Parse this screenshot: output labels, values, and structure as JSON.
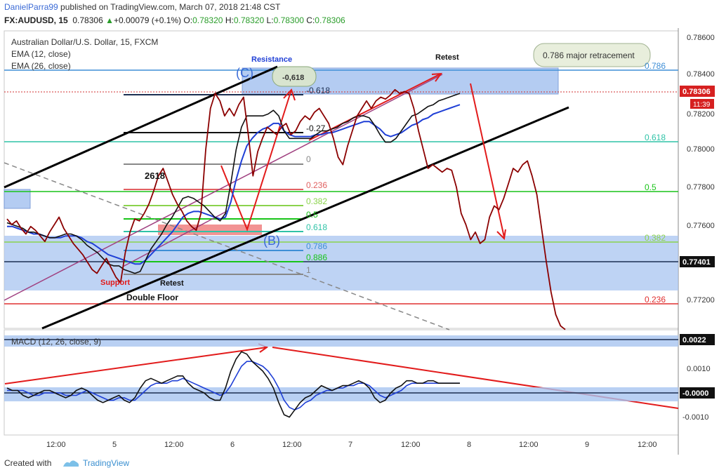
{
  "header": {
    "author": "DanielParra99",
    "published_text": " published on TradingView.com, March 07, 2018 21:48 CST",
    "symbol": "FX:AUDUSD, 15",
    "price": "0.78306",
    "change_arrow": "▲",
    "change": "+0.00079 (+0.1%)",
    "o_label": "O:",
    "o_value": "0.78320",
    "h_label": "H:",
    "h_value": "0.78320",
    "l_label": "L:",
    "l_value": "0.78300",
    "c_label": "C:",
    "c_value": "0.78306"
  },
  "legend": {
    "title": "Australian Dollar/U.S. Dollar, 15, FXCM",
    "ema12": "EMA (12, close)",
    "ema26": "EMA (26, close)",
    "macd": "MACD (12, 26, close, 9)"
  },
  "annotations": {
    "resistance": "Resistance",
    "retest_top": "Retest",
    "callout": "0.786 major retracement",
    "c_wave": "(C)",
    "b_wave": "(B)",
    "neg618_bubble": "-0,618",
    "neg618_label": "-0.618",
    "neg27": "-0.27",
    "zero": "0",
    "v2618": "2618",
    "fib_0236": "0.236",
    "fib_0382": "0.382",
    "fib_05": "0.5",
    "fib_0618": "0.618",
    "fib_0786": "0.786",
    "fib_0886": "0.886",
    "fib_1": "1",
    "support": "Support",
    "retest_bottom": "Retest",
    "double_floor": "Double Floor",
    "right_0786": "0.786",
    "right_0618": "0.618",
    "right_05": "0.5",
    "right_0382": "0.382",
    "right_0236": "0.236"
  },
  "chart_data": {
    "type": "line",
    "symbol": "AUDUSD",
    "timeframe": "15",
    "y_axis_labels": [
      "0.78600",
      "0.78400",
      "0.78200",
      "0.78000",
      "0.77800",
      "0.77600",
      "0.77200"
    ],
    "last_price_label": "0.78306",
    "countdown_label": "11:39",
    "level_label": "0.77401",
    "x_axis_labels": [
      "12:00",
      "5",
      "12:00",
      "6",
      "12:00",
      "7",
      "12:00",
      "8",
      "12:00",
      "9",
      "12:00"
    ],
    "series": [
      {
        "values": [
          0.7763,
          0.776,
          0.7762,
          0.7758,
          0.7755,
          0.7759,
          0.7757,
          0.7754,
          0.7751,
          0.7756,
          0.776,
          0.7764,
          0.7758,
          0.7754,
          0.775,
          0.7747,
          0.7744,
          0.774,
          0.7736,
          0.7734,
          0.7738,
          0.7742,
          0.7737,
          0.7732,
          0.7729,
          0.7745,
          0.7756,
          0.7763,
          0.7762,
          0.7766,
          0.7771,
          0.7778,
          0.7786,
          0.779,
          0.7783,
          0.7776,
          0.7771,
          0.7767,
          0.7762,
          0.7759,
          0.7757,
          0.7766,
          0.78,
          0.7822,
          0.783,
          0.7826,
          0.7818,
          0.7822,
          0.7818,
          0.7824,
          0.7828,
          0.7808,
          0.7786,
          0.7799,
          0.7806,
          0.7812,
          0.781,
          0.7808,
          0.7812,
          0.7814,
          0.7808,
          0.781,
          0.7815,
          0.7818,
          0.7816,
          0.782,
          0.7822,
          0.7818,
          0.7814,
          0.7806,
          0.7796,
          0.7792,
          0.7802,
          0.781,
          0.7818,
          0.7822,
          0.7826,
          0.7822,
          0.7826,
          0.7828,
          0.7827,
          0.7829,
          0.7832,
          0.783,
          0.7831,
          0.783,
          0.7822,
          0.781,
          0.78,
          0.779,
          0.7792,
          0.779,
          0.7788,
          0.779,
          0.7789,
          0.778,
          0.7766,
          0.776,
          0.7752,
          0.7756,
          0.775,
          0.7752,
          0.7764,
          0.777,
          0.7768,
          0.7774,
          0.7782,
          0.779,
          0.7788,
          0.7792,
          0.7794,
          0.7786,
          0.7776,
          0.7758,
          0.774,
          0.7724,
          0.7712,
          0.7706,
          0.7704
        ]
      },
      {
        "name": "EMA (12, close)",
        "values": [
          0.7761,
          0.776,
          0.7759,
          0.7758,
          0.7756,
          0.7756,
          0.7755,
          0.7754,
          0.7753,
          0.7753,
          0.7754,
          0.7755,
          0.7755,
          0.7754,
          0.7752,
          0.7749,
          0.7747,
          0.7745,
          0.7742,
          0.7739,
          0.7738,
          0.7738,
          0.7736,
          0.7735,
          0.7734,
          0.7735,
          0.7741,
          0.7747,
          0.7751,
          0.7755,
          0.776,
          0.7764,
          0.7769,
          0.7774,
          0.7775,
          0.7774,
          0.7772,
          0.777,
          0.7767,
          0.7764,
          0.7762,
          0.7766,
          0.7782,
          0.78,
          0.7812,
          0.7818,
          0.7818,
          0.7818,
          0.7818,
          0.7819,
          0.7821,
          0.7818,
          0.781,
          0.7806,
          0.7806,
          0.7806,
          0.7806,
          0.7806,
          0.7808,
          0.781,
          0.781,
          0.7811,
          0.7812,
          0.7814,
          0.7815,
          0.7817,
          0.7818,
          0.7818,
          0.7817,
          0.7813,
          0.7808,
          0.7804,
          0.7804,
          0.7806,
          0.781,
          0.7814,
          0.7818,
          0.7819,
          0.7821,
          0.7823,
          0.7824,
          0.7826,
          0.7827,
          0.7828,
          0.7829,
          0.783
        ]
      },
      {
        "name": "EMA (26, close)",
        "values": [
          0.7759,
          0.7759,
          0.7758,
          0.7757,
          0.7756,
          0.7755,
          0.7755,
          0.7754,
          0.7753,
          0.7753,
          0.7753,
          0.7754,
          0.7754,
          0.7754,
          0.7753,
          0.7751,
          0.775,
          0.7748,
          0.7746,
          0.7744,
          0.7743,
          0.7742,
          0.7741,
          0.774,
          0.7739,
          0.7739,
          0.7741,
          0.7744,
          0.7747,
          0.775,
          0.7753,
          0.7756,
          0.776,
          0.7764,
          0.7766,
          0.7767,
          0.7767,
          0.7766,
          0.7765,
          0.7764,
          0.7763,
          0.7764,
          0.7772,
          0.7784,
          0.7794,
          0.7802,
          0.7806,
          0.7809,
          0.7811,
          0.7812,
          0.7814,
          0.7814,
          0.781,
          0.7808,
          0.7807,
          0.7807,
          0.7807,
          0.7807,
          0.7808,
          0.7808,
          0.7809,
          0.7809,
          0.781,
          0.7811,
          0.7812,
          0.7813,
          0.7814,
          0.7815,
          0.7815,
          0.7813,
          0.7811,
          0.7808,
          0.7807,
          0.7808,
          0.7809,
          0.7811,
          0.7813,
          0.7814,
          0.7816,
          0.7817,
          0.7819,
          0.782,
          0.7821,
          0.7822,
          0.7823,
          0.7824
        ]
      }
    ],
    "macd": {
      "y_axis_labels": [
        "0.0022",
        "0.0010",
        "-0.0000",
        "-0.0010"
      ],
      "macd_values": [
        0.0002,
        0.0001,
        0.0001,
        -0.0001,
        -0.0002,
        -0.0001,
        0.0,
        0.0001,
        0.0001,
        0.0,
        -0.0001,
        -0.0002,
        -0.0001,
        0.0001,
        0.0002,
        0.0001,
        -0.0001,
        -0.0003,
        -0.0004,
        -0.0003,
        -0.0002,
        -0.0001,
        -0.0003,
        -0.0004,
        -0.0002,
        0.0002,
        0.0005,
        0.0006,
        0.0005,
        0.0004,
        0.0005,
        0.0006,
        0.0007,
        0.0007,
        0.0004,
        0.0002,
        0.0001,
        0.0,
        -0.0002,
        -0.0003,
        -0.0003,
        0.0002,
        0.0009,
        0.0014,
        0.0017,
        0.0016,
        0.0013,
        0.0011,
        0.0009,
        0.0006,
        0.0002,
        -0.0004,
        -0.0009,
        -0.001,
        -0.0007,
        -0.0004,
        -0.0002,
        -0.0001,
        0.0001,
        0.0003,
        0.0002,
        0.0001,
        0.0002,
        0.0003,
        0.0003,
        0.0004,
        0.0005,
        0.0004,
        0.0002,
        -0.0002,
        -0.0004,
        -0.0003,
        0.0,
        0.0002,
        0.0003,
        0.0005,
        0.0005,
        0.0004,
        0.0004,
        0.0005,
        0.0005,
        0.0004,
        0.0004,
        0.0004,
        0.0004,
        0.0004
      ],
      "signal_values": [
        0.0001,
        0.0001,
        0.0001,
        0.0001,
        0.0,
        -0.0001,
        -0.0001,
        0.0,
        0.0,
        0.0,
        0.0,
        -0.0001,
        -0.0001,
        -0.0001,
        0.0,
        0.0001,
        0.0,
        -0.0001,
        -0.0002,
        -0.0003,
        -0.0003,
        -0.0002,
        -0.0002,
        -0.0003,
        -0.0003,
        -0.0001,
        0.0001,
        0.0003,
        0.0004,
        0.0004,
        0.0004,
        0.0005,
        0.0005,
        0.0006,
        0.0005,
        0.0004,
        0.0003,
        0.0002,
        0.0001,
        0.0,
        -0.0001,
        0.0,
        0.0003,
        0.0007,
        0.0011,
        0.0013,
        0.0013,
        0.0012,
        0.0011,
        0.0009,
        0.0006,
        0.0002,
        -0.0003,
        -0.0006,
        -0.0007,
        -0.0006,
        -0.0004,
        -0.0003,
        -0.0001,
        0.0,
        0.0001,
        0.0001,
        0.0002,
        0.0002,
        0.0003,
        0.0003,
        0.0004,
        0.0004,
        0.0003,
        0.0001,
        -0.0001,
        -0.0002,
        -0.0001,
        0.0,
        0.0001,
        0.0003,
        0.0004,
        0.0004,
        0.0004,
        0.0004,
        0.0004,
        0.0004,
        0.0004,
        0.0004,
        0.0004,
        0.0004
      ]
    }
  },
  "colors": {
    "price": "#8b0000",
    "ema12": "#111111",
    "ema26": "#1f3fd6",
    "fib_zone": "#a8c4f0",
    "trend_black": "#000000",
    "trend_red": "#e21b1b",
    "teal": "#2fc3a7",
    "lime": "#8bd34c",
    "green": "#18c418"
  },
  "footer": {
    "created_with": "Created with",
    "tradingview": "TradingView"
  }
}
